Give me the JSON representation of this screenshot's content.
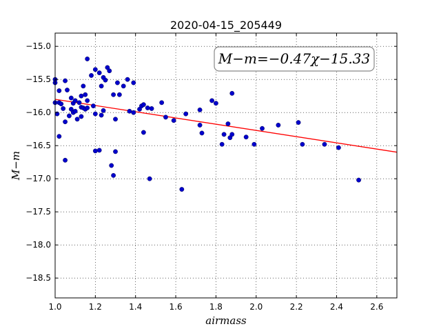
{
  "chart_data": {
    "type": "scatter",
    "title": "2020-04-15_205449",
    "xlabel": "airmass",
    "ylabel": "M−m",
    "xlim": [
      1.0,
      2.7
    ],
    "ylim": [
      -18.8,
      -14.8
    ],
    "y_inverted": true,
    "xticks": [
      "1.0",
      "1.2",
      "1.4",
      "1.6",
      "1.8",
      "2.0",
      "2.2",
      "2.4",
      "2.6"
    ],
    "yticks": [
      "−15.0",
      "−15.5",
      "−16.0",
      "−16.5",
      "−17.0",
      "−17.5",
      "−18.0",
      "−18.5"
    ],
    "grid": true,
    "annotation": "M−m=−0.47χ−15.33",
    "fit": {
      "slope": -0.47,
      "intercept": -15.33,
      "color": "#ff0000"
    },
    "point_color": "#0000cc",
    "points": [
      [
        1.0,
        -15.5
      ],
      [
        1.0,
        -15.55
      ],
      [
        1.0,
        -15.85
      ],
      [
        1.01,
        -16.02
      ],
      [
        1.02,
        -15.67
      ],
      [
        1.02,
        -15.85
      ],
      [
        1.02,
        -16.36
      ],
      [
        1.03,
        -15.87
      ],
      [
        1.04,
        -15.94
      ],
      [
        1.05,
        -15.52
      ],
      [
        1.05,
        -16.14
      ],
      [
        1.05,
        -16.72
      ],
      [
        1.06,
        -15.66
      ],
      [
        1.07,
        -16.05
      ],
      [
        1.08,
        -15.78
      ],
      [
        1.08,
        -15.95
      ],
      [
        1.09,
        -15.86
      ],
      [
        1.09,
        -16.0
      ],
      [
        1.1,
        -15.82
      ],
      [
        1.1,
        -15.98
      ],
      [
        1.11,
        -16.1
      ],
      [
        1.12,
        -15.85
      ],
      [
        1.13,
        -15.75
      ],
      [
        1.13,
        -15.92
      ],
      [
        1.13,
        -16.06
      ],
      [
        1.14,
        -15.6
      ],
      [
        1.14,
        -15.93
      ],
      [
        1.15,
        -15.73
      ],
      [
        1.15,
        -15.95
      ],
      [
        1.16,
        -15.19
      ],
      [
        1.16,
        -15.82
      ],
      [
        1.16,
        -15.93
      ],
      [
        1.18,
        -15.44
      ],
      [
        1.19,
        -15.9
      ],
      [
        1.2,
        -15.35
      ],
      [
        1.2,
        -16.02
      ],
      [
        1.2,
        -16.58
      ],
      [
        1.22,
        -15.4
      ],
      [
        1.22,
        -16.57
      ],
      [
        1.23,
        -15.6
      ],
      [
        1.23,
        -16.04
      ],
      [
        1.24,
        -15.47
      ],
      [
        1.24,
        -15.97
      ],
      [
        1.25,
        -15.51
      ],
      [
        1.26,
        -15.32
      ],
      [
        1.27,
        -15.37
      ],
      [
        1.28,
        -16.8
      ],
      [
        1.29,
        -15.73
      ],
      [
        1.29,
        -16.95
      ],
      [
        1.3,
        -16.59
      ],
      [
        1.3,
        -16.1
      ],
      [
        1.31,
        -15.55
      ],
      [
        1.32,
        -15.73
      ],
      [
        1.34,
        -15.6
      ],
      [
        1.36,
        -15.5
      ],
      [
        1.37,
        -15.98
      ],
      [
        1.39,
        -15.55
      ],
      [
        1.39,
        -16.0
      ],
      [
        1.42,
        -15.95
      ],
      [
        1.43,
        -15.9
      ],
      [
        1.44,
        -16.3
      ],
      [
        1.44,
        -15.88
      ],
      [
        1.46,
        -15.93
      ],
      [
        1.47,
        -17.0
      ],
      [
        1.48,
        -15.94
      ],
      [
        1.53,
        -15.85
      ],
      [
        1.55,
        -16.07
      ],
      [
        1.59,
        -16.12
      ],
      [
        1.63,
        -17.16
      ],
      [
        1.65,
        -16.02
      ],
      [
        1.72,
        -16.19
      ],
      [
        1.72,
        -15.96
      ],
      [
        1.73,
        -16.31
      ],
      [
        1.78,
        -15.82
      ],
      [
        1.8,
        -15.86
      ],
      [
        1.83,
        -16.48
      ],
      [
        1.84,
        -16.33
      ],
      [
        1.86,
        -16.17
      ],
      [
        1.87,
        -16.38
      ],
      [
        1.88,
        -15.71
      ],
      [
        1.88,
        -16.33
      ],
      [
        1.95,
        -16.37
      ],
      [
        1.99,
        -16.48
      ],
      [
        2.03,
        -16.24
      ],
      [
        2.11,
        -16.19
      ],
      [
        2.21,
        -16.15
      ],
      [
        2.23,
        -16.48
      ],
      [
        2.34,
        -16.48
      ],
      [
        2.41,
        -16.53
      ],
      [
        2.51,
        -17.02
      ]
    ]
  }
}
